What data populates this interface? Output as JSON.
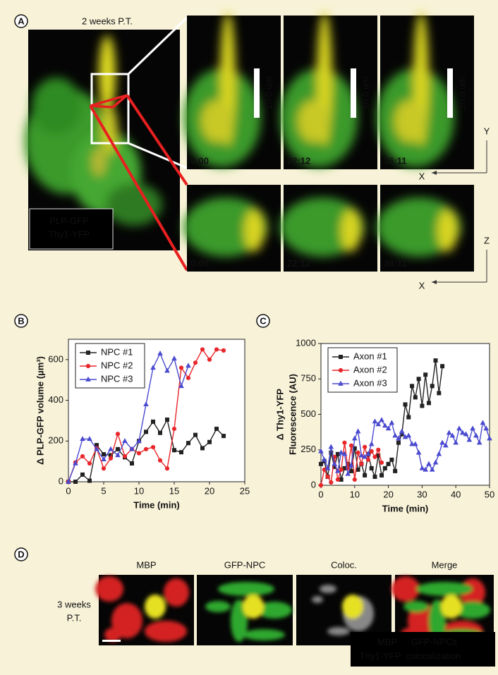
{
  "panel_labels": [
    "A",
    "B",
    "C",
    "D"
  ],
  "panel_a": {
    "title": "2 weeks P.T.",
    "legend": [
      {
        "text": "PLP-GFP",
        "color": "#3cc43c"
      },
      {
        "text": "Thy1-YFP",
        "color": "#e8e030"
      }
    ],
    "scale_bars": [
      "10.0 um",
      "10.0 um",
      "10.0 um"
    ],
    "top_row": [
      "0:00",
      "22:12",
      "36:11"
    ],
    "bottom_row": [
      "0:00",
      "22:12",
      "36:11"
    ],
    "axes_top": [
      "Y",
      "X"
    ],
    "axes_bottom": [
      "Z",
      "X"
    ]
  },
  "chart_data": [
    {
      "type": "line",
      "ylabel": [
        "Δ PLP-GFP volume (µm³)"
      ],
      "xlabel": "Time (min)",
      "xlim": [
        0,
        25
      ],
      "xticks": [
        0,
        5,
        10,
        15,
        20,
        25
      ],
      "ylim": [
        0,
        700
      ],
      "yticks": [
        0,
        200,
        400,
        600
      ],
      "grid": false,
      "legend": "upper left",
      "series": [
        {
          "name": "NPC #1",
          "color": "#222222",
          "marker": "square",
          "x": [
            0,
            1,
            2,
            3,
            4,
            5,
            6,
            7,
            8,
            9,
            10,
            11,
            12,
            13,
            14,
            15,
            16,
            17,
            18,
            19,
            20,
            21,
            22
          ],
          "values": [
            0,
            0,
            35,
            5,
            180,
            135,
            130,
            160,
            120,
            90,
            200,
            245,
            295,
            240,
            305,
            155,
            145,
            190,
            230,
            165,
            195,
            260,
            225
          ]
        },
        {
          "name": "NPC #2",
          "color": "#e8272b",
          "marker": "circle",
          "x": [
            0,
            1,
            2,
            3,
            4,
            5,
            6,
            7,
            8,
            9,
            10,
            11,
            12,
            13,
            14,
            15,
            16,
            17,
            18,
            19,
            20,
            21,
            22
          ],
          "values": [
            0,
            95,
            125,
            90,
            165,
            65,
            115,
            235,
            125,
            160,
            140,
            160,
            170,
            105,
            65,
            260,
            560,
            510,
            585,
            650,
            600,
            650,
            645
          ]
        },
        {
          "name": "NPC #3",
          "color": "#4a4ad0",
          "marker": "triangle",
          "x": [
            0,
            1,
            2,
            3,
            4,
            5,
            6,
            7,
            8,
            9,
            10,
            11,
            12,
            13,
            14,
            15,
            16,
            17
          ],
          "values": [
            0,
            90,
            210,
            210,
            160,
            110,
            160,
            130,
            200,
            160,
            200,
            380,
            560,
            630,
            545,
            605,
            470,
            570
          ]
        }
      ]
    },
    {
      "type": "line",
      "ylabel": [
        "Δ Thy1-YFP",
        "Fluorescence (AU)"
      ],
      "xlabel": "Time (min)",
      "xlim": [
        0,
        50
      ],
      "xticks": [
        0,
        10,
        20,
        30,
        40,
        50
      ],
      "ylim": [
        0,
        1000
      ],
      "yticks": [
        0,
        250,
        500,
        750,
        1000
      ],
      "grid": false,
      "legend": "upper left",
      "series": [
        {
          "name": "Axon #1",
          "color": "#222222",
          "marker": "square",
          "x": [
            0,
            1,
            2,
            3,
            4,
            5,
            6,
            7,
            8,
            9,
            10,
            11,
            12,
            13,
            14,
            15,
            16,
            17,
            18,
            19,
            20,
            21,
            22,
            23,
            24,
            25,
            26,
            27,
            28,
            29,
            30,
            31,
            32,
            33,
            34,
            35,
            36
          ],
          "values": [
            150,
            170,
            60,
            230,
            130,
            220,
            40,
            120,
            150,
            100,
            260,
            110,
            150,
            70,
            220,
            120,
            60,
            210,
            70,
            120,
            150,
            180,
            100,
            300,
            360,
            570,
            480,
            700,
            620,
            750,
            560,
            780,
            580,
            700,
            880,
            650,
            840
          ]
        },
        {
          "name": "Axon #2",
          "color": "#e8272b",
          "marker": "circle",
          "x": [
            0,
            1,
            2,
            3,
            4,
            5,
            6,
            7,
            8,
            9,
            10,
            11,
            12,
            13,
            14,
            15,
            16,
            17,
            18
          ],
          "values": [
            0,
            110,
            60,
            20,
            200,
            40,
            110,
            300,
            120,
            280,
            40,
            230,
            150,
            270,
            180,
            240,
            200,
            250,
            160
          ]
        },
        {
          "name": "Axon #3",
          "color": "#4a4ad0",
          "marker": "triangle",
          "x": [
            0,
            1,
            2,
            3,
            4,
            5,
            6,
            7,
            8,
            9,
            10,
            11,
            12,
            13,
            14,
            15,
            16,
            17,
            18,
            19,
            20,
            21,
            22,
            23,
            24,
            25,
            26,
            27,
            28,
            29,
            30,
            31,
            32,
            33,
            34,
            35,
            36,
            37,
            38,
            39,
            40,
            41,
            42,
            43,
            44,
            45,
            46,
            47,
            48,
            49,
            50
          ],
          "values": [
            240,
            180,
            120,
            270,
            150,
            100,
            230,
            220,
            80,
            140,
            330,
            380,
            210,
            200,
            220,
            290,
            450,
            430,
            460,
            420,
            400,
            440,
            350,
            330,
            380,
            340,
            350,
            290,
            290,
            230,
            120,
            110,
            150,
            110,
            160,
            220,
            300,
            280,
            370,
            350,
            300,
            400,
            370,
            360,
            320,
            400,
            350,
            300,
            440,
            400,
            330
          ]
        }
      ]
    }
  ],
  "panel_d": {
    "columns": [
      "MBP",
      "GFP-NPC",
      "Coloc.",
      "Merge"
    ],
    "condition": [
      "3 weeks",
      "P.T."
    ],
    "legend": [
      {
        "text": "MBP",
        "color": "#e8272b"
      },
      {
        "text": "GFP-NPCs",
        "color": "#3cc43c"
      },
      {
        "text": "Thy1-YFP",
        "color": "#e8e030"
      },
      {
        "text": "colocalization",
        "color": "#ffffff"
      }
    ]
  }
}
